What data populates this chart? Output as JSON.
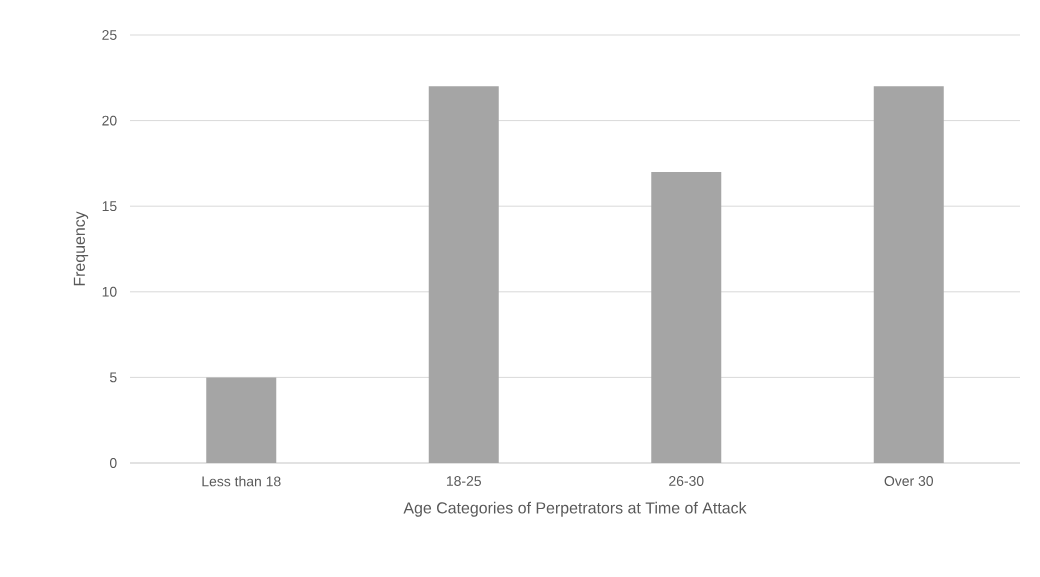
{
  "chart_data": {
    "type": "bar",
    "xlabel": "Age Categories of Perpetrators at Time of Attack",
    "ylabel": "Frequency",
    "categories": [
      "Less than 18",
      "18-25",
      "26-30",
      "Over 30"
    ],
    "values": [
      5,
      22,
      17,
      22
    ],
    "color": "#a5a5a5",
    "ylim": [
      0,
      25
    ],
    "yticks": [
      0,
      5,
      10,
      15,
      20,
      25
    ],
    "grid": "y"
  }
}
